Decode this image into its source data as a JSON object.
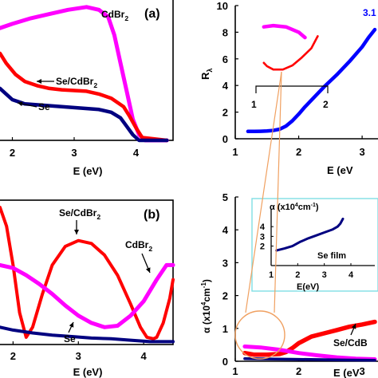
{
  "chart_data": [
    {
      "type": "line",
      "panel": "(a)",
      "xlabel": "E (eV)",
      "ylabel": "",
      "xlim": [
        1.8,
        4.6
      ],
      "ylim": [
        0,
        1
      ],
      "xticks": [
        2,
        3,
        4
      ],
      "series": [
        {
          "name": "CdBr2",
          "name_main": "CdBr",
          "name_sub": "2",
          "color": "#ff00ff",
          "x": [
            1.8,
            2.0,
            2.3,
            2.6,
            2.9,
            3.2,
            3.4,
            3.55,
            3.65,
            3.75,
            3.85,
            3.95,
            4.05,
            4.15,
            4.5
          ],
          "y": [
            0.8,
            0.83,
            0.87,
            0.9,
            0.93,
            0.95,
            0.93,
            0.88,
            0.75,
            0.55,
            0.35,
            0.15,
            0.04,
            0.0,
            0.0
          ]
        },
        {
          "name": "Se/CdBr2",
          "name_main": "Se/CdBr",
          "name_sub": "2",
          "color": "#ff0000",
          "x": [
            1.8,
            1.9,
            2.05,
            2.2,
            2.4,
            2.6,
            2.8,
            3.0,
            3.2,
            3.4,
            3.6,
            3.8,
            3.9,
            4.0,
            4.1,
            4.5
          ],
          "y": [
            0.62,
            0.55,
            0.47,
            0.42,
            0.39,
            0.37,
            0.36,
            0.355,
            0.35,
            0.33,
            0.3,
            0.24,
            0.17,
            0.09,
            0.02,
            0.0
          ]
        },
        {
          "name": "Se",
          "color": "#000080",
          "x": [
            1.8,
            1.9,
            2.0,
            2.2,
            2.5,
            2.8,
            3.1,
            3.4,
            3.6,
            3.75,
            3.85,
            3.95,
            4.05,
            4.5
          ],
          "y": [
            0.37,
            0.33,
            0.29,
            0.26,
            0.25,
            0.24,
            0.23,
            0.22,
            0.2,
            0.16,
            0.1,
            0.04,
            0.0,
            0.0
          ]
        }
      ]
    },
    {
      "type": "line",
      "panel": "(b)",
      "xlabel": "E (eV)",
      "ylabel": "",
      "xlim": [
        1.8,
        4.45
      ],
      "ylim": [
        0,
        1
      ],
      "xticks": [
        2,
        3,
        4
      ],
      "series": [
        {
          "name": "Se/CdBr2",
          "name_main": "Se/CdBr",
          "name_sub": "2",
          "color": "#ff0000",
          "x": [
            1.8,
            1.9,
            2.0,
            2.1,
            2.2,
            2.3,
            2.45,
            2.6,
            2.8,
            3.0,
            3.2,
            3.4,
            3.6,
            3.8,
            3.95,
            4.05,
            4.15,
            4.2,
            4.3,
            4.4,
            4.45
          ],
          "y": [
            0.95,
            0.82,
            0.55,
            0.22,
            0.05,
            0.12,
            0.35,
            0.55,
            0.68,
            0.72,
            0.7,
            0.62,
            0.48,
            0.28,
            0.12,
            0.05,
            0.04,
            0.05,
            0.15,
            0.32,
            0.45
          ]
        },
        {
          "name": "CdBr2",
          "name_main": "CdBr",
          "name_sub": "2",
          "color": "#ff00ff",
          "x": [
            1.8,
            2.0,
            2.2,
            2.4,
            2.6,
            2.8,
            3.0,
            3.2,
            3.4,
            3.6,
            3.8,
            4.0,
            4.2,
            4.35,
            4.45
          ],
          "y": [
            0.55,
            0.53,
            0.48,
            0.42,
            0.35,
            0.27,
            0.2,
            0.15,
            0.12,
            0.13,
            0.2,
            0.3,
            0.45,
            0.55,
            0.55
          ]
        },
        {
          "name": "Se",
          "color": "#000080",
          "x": [
            1.8,
            2.0,
            2.3,
            2.6,
            2.9,
            3.2,
            3.5,
            3.8,
            4.1,
            4.45
          ],
          "y": [
            0.12,
            0.1,
            0.08,
            0.065,
            0.055,
            0.045,
            0.04,
            0.03,
            0.02,
            0.02
          ]
        }
      ]
    },
    {
      "type": "line",
      "panel": "top-right",
      "xlabel": "E (eV",
      "ylabel_main": "R",
      "ylabel_sub": "λ",
      "xlim": [
        1,
        3.25
      ],
      "ylim": [
        0,
        10
      ],
      "xticks": [
        1,
        2,
        3
      ],
      "yticks": [
        0,
        2,
        4,
        6,
        8,
        10
      ],
      "annotation_value": "3.1",
      "marks": [
        "1",
        "2"
      ],
      "series": [
        {
          "name": "",
          "color": "#0000ff",
          "x": [
            1.2,
            1.3,
            1.4,
            1.5,
            1.6,
            1.7,
            1.8,
            1.9,
            2.0,
            2.1,
            2.2,
            2.4,
            2.6,
            2.8,
            3.0,
            3.1,
            3.2
          ],
          "y": [
            0.55,
            0.55,
            0.56,
            0.58,
            0.62,
            0.72,
            0.95,
            1.35,
            1.85,
            2.4,
            2.9,
            3.9,
            4.8,
            5.8,
            6.9,
            7.6,
            8.2
          ]
        }
      ],
      "inset_magenta": {
        "color": "#ff00ff",
        "x": [
          1.45,
          1.6,
          1.8,
          2.0,
          2.1
        ],
        "y": [
          8.4,
          8.5,
          8.4,
          8.0,
          7.6
        ]
      },
      "inset_red": {
        "color": "#ff0000",
        "x": [
          1.45,
          1.5,
          1.6,
          1.75,
          1.9,
          2.05,
          2.2,
          2.3
        ],
        "y": [
          5.7,
          5.45,
          5.2,
          5.2,
          5.5,
          6.1,
          6.8,
          7.7
        ]
      }
    },
    {
      "type": "line",
      "panel": "bottom-right",
      "xlabel": "E (eV",
      "ylabel_main": "α (x10",
      "ylabel_sup": "4",
      "ylabel_tail": "cm",
      "ylabel_sup2": "-1",
      "ylabel_close": ")",
      "xlim": [
        1,
        3.25
      ],
      "ylim": [
        0,
        5
      ],
      "xticks": [
        1,
        2,
        3
      ],
      "yticks": [
        0,
        1,
        2,
        3,
        4,
        5
      ],
      "series": [
        {
          "name": "Se/CdBr2",
          "name_main": "Se/CdB",
          "color": "#ff0000",
          "x": [
            1.15,
            1.3,
            1.5,
            1.7,
            1.8,
            1.9,
            2.0,
            2.2,
            2.4,
            2.6,
            2.8,
            3.0,
            3.2
          ],
          "y": [
            0.25,
            0.2,
            0.2,
            0.22,
            0.28,
            0.4,
            0.55,
            0.75,
            0.85,
            0.95,
            1.05,
            1.12,
            1.2
          ]
        },
        {
          "name": "",
          "color": "#ff00ff",
          "x": [
            1.15,
            1.4,
            1.7,
            2.0,
            2.3,
            2.6,
            2.9,
            3.2
          ],
          "y": [
            0.45,
            0.42,
            0.35,
            0.25,
            0.18,
            0.12,
            0.08,
            0.06
          ]
        },
        {
          "name": "",
          "color": "#000080",
          "x": [
            1.15,
            1.5,
            1.9,
            2.3,
            2.7,
            3.2
          ],
          "y": [
            0.08,
            0.07,
            0.06,
            0.05,
            0.04,
            0.03
          ]
        }
      ],
      "inset": {
        "ylabel_main": "α (x10",
        "ylabel_sup": "4",
        "ylabel_tail": "cm",
        "ylabel_sup2": "-1",
        "ylabel_close": ")",
        "xlabel": "E(eV)",
        "title": "Se film",
        "xlim": [
          1,
          4.9
        ],
        "ylim": [
          0,
          5
        ],
        "xticks": [
          1,
          2,
          3,
          4
        ],
        "yticks": [
          2,
          3,
          4
        ],
        "series": {
          "color": "#000080",
          "x": [
            1.2,
            1.5,
            1.8,
            2.1,
            2.4,
            2.7,
            3.0,
            3.3,
            3.5,
            3.6,
            3.7
          ],
          "y": [
            1.55,
            1.75,
            2.0,
            2.45,
            2.8,
            3.1,
            3.4,
            3.7,
            4.0,
            4.3,
            4.8
          ]
        }
      }
    }
  ]
}
